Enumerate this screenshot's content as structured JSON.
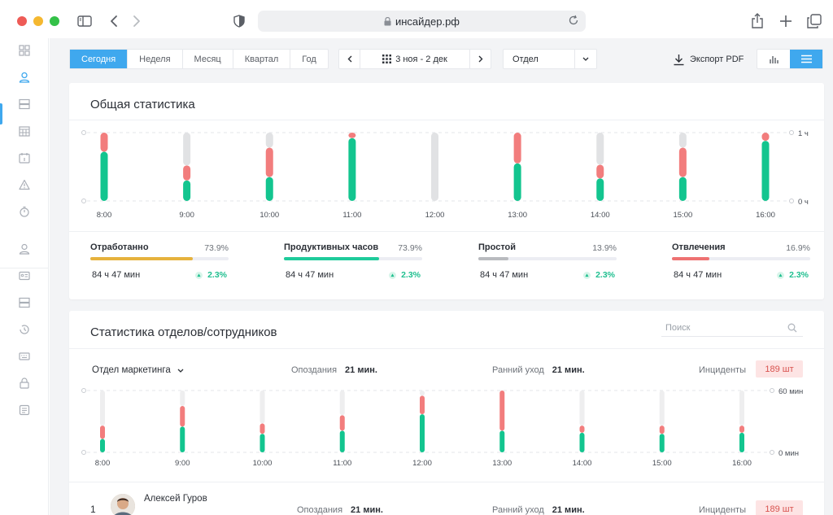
{
  "browser": {
    "url": "инсайдер.рф",
    "traffic_colors": [
      "#ee5b56",
      "#f5b830",
      "#34c148"
    ]
  },
  "toolbar": {
    "periods": [
      "Сегодня",
      "Неделя",
      "Месяц",
      "Квартал",
      "Год"
    ],
    "active_period": "Сегодня",
    "date_range": "3 ноя - 2 дек",
    "department_select": "Отдел",
    "export_label": "Экспорт PDF",
    "active_view": "list"
  },
  "general": {
    "title": "Общая статистика",
    "chart_data": {
      "type": "bar",
      "stacked": true,
      "categories": [
        "8:00",
        "9:00",
        "10:00",
        "11:00",
        "12:00",
        "13:00",
        "14:00",
        "15:00",
        "16:00"
      ],
      "y_ticks": [
        "1 ч",
        "0 ч"
      ],
      "ylim": [
        0,
        1
      ],
      "series": [
        {
          "color": "#13c58f",
          "values": [
            0.72,
            0.3,
            0.35,
            0.92,
            0,
            0.55,
            0.33,
            0.35,
            0.88
          ]
        },
        {
          "color": "#f27d7d",
          "values": [
            0.28,
            0.22,
            0.43,
            0.08,
            0,
            0.45,
            0.2,
            0.43,
            0.12
          ]
        },
        {
          "color": "#e1e2e4",
          "values": [
            0,
            0.48,
            0.22,
            0,
            1,
            0,
            0.47,
            0.22,
            0
          ]
        }
      ]
    },
    "stats": [
      {
        "label": "Отработанно",
        "pct": "73.9%",
        "fill": 0.74,
        "color": "#e6b23d",
        "time": "84 ч 47 мин",
        "change": "2.3%"
      },
      {
        "label": "Продуктивных часов",
        "pct": "73.9%",
        "fill": 0.69,
        "color": "#1fcb9b",
        "time": "84 ч 47 мин",
        "change": "2.3%"
      },
      {
        "label": "Простой",
        "pct": "13.9%",
        "fill": 0.22,
        "color": "#b9bbbf",
        "time": "84 ч 47 мин",
        "change": "2.3%"
      },
      {
        "label": "Отвлечения",
        "pct": "16.9%",
        "fill": 0.27,
        "color": "#ee7272",
        "time": "84 ч 47 мин",
        "change": "2.3%"
      }
    ]
  },
  "departments": {
    "title": "Статистика отделов/сотрудников",
    "search_placeholder": "Поиск",
    "department_name": "Отдел маркетинга",
    "late_label": "Опоздания",
    "late_value": "21 мин.",
    "early_label": "Ранний уход",
    "early_value": "21 мин.",
    "incidents_label": "Инциденты",
    "incidents_value": "189 шт",
    "chart_data": {
      "type": "bar",
      "stacked": true,
      "categories": [
        "8:00",
        "9:00",
        "10:00",
        "11:00",
        "12:00",
        "13:00",
        "14:00",
        "15:00",
        "16:00"
      ],
      "y_ticks": [
        "60 мин",
        "0 мин"
      ],
      "ylim": [
        0,
        60
      ],
      "series": [
        {
          "color": "#13c58f",
          "values": [
            13,
            25,
            18,
            21,
            37,
            21,
            19,
            18,
            19
          ]
        },
        {
          "color": "#f27d7d",
          "values": [
            13,
            20,
            10,
            15,
            18,
            39,
            7,
            8,
            7
          ]
        },
        {
          "color": "#eeeeef",
          "values": [
            34,
            15,
            32,
            24,
            5,
            0,
            34,
            34,
            34
          ]
        }
      ]
    },
    "employee": {
      "index": "1",
      "name": "Алексей Гуров",
      "late_label": "Опоздания",
      "late_value": "21 мин.",
      "early_label": "Ранний уход",
      "early_value": "21 мин.",
      "incidents_label": "Инциденты",
      "incidents_value": "189 шт"
    }
  }
}
